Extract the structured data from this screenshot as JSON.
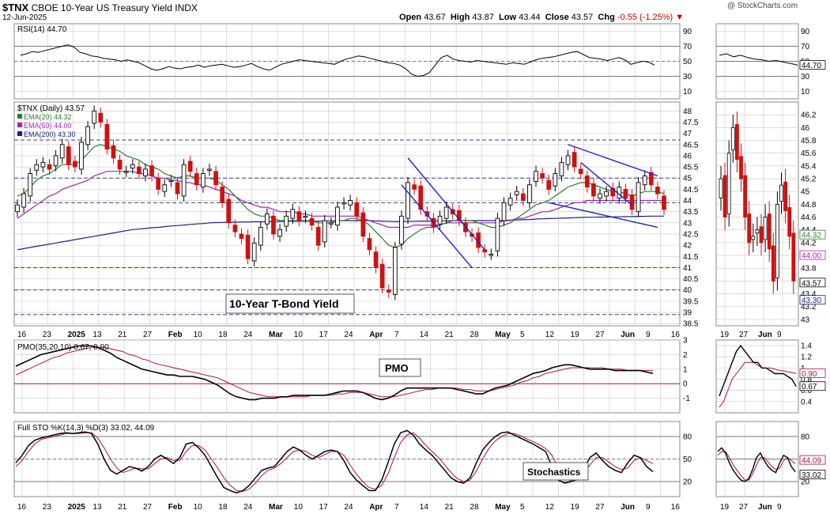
{
  "header": {
    "symbol": "$TNX",
    "name": "CBOE 10-Year US Treasury Yield",
    "exchange": "INDX",
    "date": "12-Jun-2025",
    "copyright": "@ StockCharts.com",
    "open_label": "Open",
    "open": "43.67",
    "high_label": "High",
    "high": "43.87",
    "low_label": "Low",
    "low": "43.44",
    "close_label": "Close",
    "close": "43.57",
    "chg_label": "Chg",
    "chg": "-0.55 (-1.25%)"
  },
  "colors": {
    "grid": "#c8c8c8",
    "hline": "#1a237e",
    "up": "#000000",
    "down": "#d01010",
    "ema20": "#2e7d32",
    "ema50": "#9c27b0",
    "ema200": "#1a237e",
    "channel": "#1e22c8",
    "pmo": "#000000",
    "pmo_signal": "#b01040",
    "sto_k": "#000000",
    "sto_d": "#b01040"
  },
  "chart_data": [
    {
      "type": "line",
      "panel": "rsi",
      "label": "RSI(14) 44.70",
      "yticks": [
        90,
        70,
        50,
        30,
        10
      ],
      "ylim": [
        0,
        100
      ],
      "hlines": [
        70,
        50,
        30
      ],
      "values": [
        58,
        60,
        63,
        62,
        64,
        66,
        68,
        70,
        72,
        69,
        62,
        60,
        57,
        56,
        54,
        53,
        52,
        50,
        52,
        50,
        48,
        44,
        40,
        38,
        40,
        43,
        41,
        40,
        42,
        43,
        45,
        42,
        44,
        45,
        46,
        44,
        42,
        43,
        45,
        47,
        43,
        40,
        38,
        42,
        46,
        48,
        50,
        52,
        51,
        50,
        49,
        48,
        47,
        46,
        50,
        53,
        55,
        57,
        56,
        54,
        52,
        50,
        48,
        47,
        45,
        40,
        33,
        30,
        31,
        35,
        45,
        55,
        58,
        53,
        51,
        50,
        49,
        51,
        50,
        49,
        48,
        47,
        46,
        48,
        47,
        46,
        49,
        52,
        54,
        55,
        56,
        58,
        60,
        62,
        63,
        59,
        55,
        54,
        53,
        51,
        53,
        55,
        52,
        46,
        48,
        50,
        49,
        45
      ],
      "zoom_values": [
        58,
        60,
        56,
        58,
        55,
        53,
        52,
        50,
        51,
        49,
        47,
        45
      ]
    },
    {
      "type": "candlestick",
      "panel": "price",
      "label": "$TNX (Daily) 43.57",
      "ylim": [
        38.4,
        48.4
      ],
      "yticks": [
        48.0,
        47.5,
        47.0,
        46.5,
        46.0,
        45.5,
        45.0,
        44.5,
        44.0,
        43.5,
        43.0,
        42.5,
        42.0,
        41.5,
        41.0,
        40.5,
        40.0,
        39.5,
        39.0,
        38.5
      ],
      "hlines": [
        46.7,
        45.0,
        43.9,
        41.0,
        40.0,
        38.9
      ],
      "annotation": "10-Year T-Bond Yield",
      "ema_legend": [
        {
          "name": "EMA(20) 44.32",
          "color": "#2e7d32"
        },
        {
          "name": "EMA(50) 44.00",
          "color": "#9c27b0"
        },
        {
          "name": "EMA(200) 43.30",
          "color": "#1a237e"
        }
      ],
      "closes": [
        43.8,
        44.3,
        45.2,
        45.6,
        45.7,
        45.4,
        46.0,
        46.5,
        45.6,
        45.5,
        46.6,
        47.3,
        48.0,
        47.5,
        46.3,
        45.9,
        45.4,
        45.3,
        45.6,
        45.2,
        45.4,
        45.1,
        44.5,
        44.7,
        44.9,
        44.3,
        45.6,
        45.3,
        44.7,
        45.2,
        45.4,
        44.7,
        43.9,
        43.0,
        42.6,
        42.3,
        41.4,
        42.1,
        42.8,
        43.4,
        42.5,
        42.7,
        43.3,
        43.6,
        43.1,
        43.3,
        42.9,
        42.0,
        43.1,
        43.0,
        43.7,
        43.9,
        44.0,
        43.3,
        42.4,
        41.8,
        41.0,
        40.1,
        39.9,
        41.9,
        43.3,
        44.8,
        44.5,
        43.6,
        43.3,
        42.8,
        43.3,
        43.7,
        43.4,
        43.1,
        42.6,
        42.4,
        41.9,
        41.7,
        41.6,
        43.2,
        43.9,
        44.1,
        44.4,
        44.0,
        44.7,
        45.3,
        45.0,
        44.5,
        45.2,
        45.7,
        46.0,
        45.5,
        45.2,
        44.6,
        44.2,
        44.3,
        44.4,
        44.2,
        44.6,
        44.1,
        43.6,
        44.8,
        45.1,
        44.7,
        44.3,
        43.6
      ],
      "ema20": [
        44.2,
        44.3,
        44.6,
        44.9,
        45.1,
        45.2,
        45.4,
        45.6,
        45.6,
        45.6,
        45.8,
        46.1,
        46.4,
        46.5,
        46.4,
        46.3,
        46.2,
        46.0,
        45.9,
        45.8,
        45.6,
        45.5,
        45.4,
        45.2,
        45.1,
        45.0,
        45.1,
        45.1,
        45.0,
        45.0,
        45.0,
        44.9,
        44.7,
        44.5,
        44.2,
        43.9,
        43.6,
        43.4,
        43.3,
        43.3,
        43.2,
        43.1,
        43.1,
        43.1,
        43.1,
        43.1,
        43.1,
        43.0,
        43.0,
        43.0,
        43.1,
        43.1,
        43.2,
        43.2,
        43.1,
        42.9,
        42.6,
        42.3,
        42.0,
        41.9,
        42.0,
        42.3,
        42.5,
        42.7,
        42.8,
        42.8,
        42.9,
        43.0,
        43.1,
        43.1,
        43.1,
        43.1,
        43.0,
        42.9,
        42.8,
        42.8,
        42.9,
        43.0,
        43.2,
        43.4,
        43.6,
        43.8,
        43.9,
        44.0,
        44.2,
        44.4,
        44.6,
        44.7,
        44.8,
        44.8,
        44.7,
        44.6,
        44.5,
        44.4,
        44.4,
        44.3,
        44.2,
        44.3,
        44.4,
        44.4,
        44.4,
        44.3
      ],
      "ema50": [
        43.2,
        43.4,
        43.6,
        43.8,
        44.0,
        44.2,
        44.3,
        44.5,
        44.6,
        44.7,
        44.8,
        44.9,
        45.1,
        45.2,
        45.3,
        45.3,
        45.3,
        45.3,
        45.3,
        45.2,
        45.2,
        45.1,
        45.0,
        45.0,
        44.9,
        44.9,
        44.8,
        44.8,
        44.7,
        44.7,
        44.6,
        44.5,
        44.4,
        44.3,
        44.2,
        44.0,
        43.9,
        43.8,
        43.7,
        43.7,
        43.6,
        43.5,
        43.5,
        43.5,
        43.4,
        43.4,
        43.3,
        43.3,
        43.3,
        43.3,
        43.3,
        43.3,
        43.3,
        43.3,
        43.2,
        43.1,
        43.0,
        42.9,
        42.8,
        42.8,
        42.8,
        42.8,
        42.9,
        42.9,
        42.9,
        42.9,
        42.9,
        43.0,
        43.0,
        43.0,
        43.0,
        43.0,
        43.0,
        43.0,
        43.0,
        43.0,
        43.1,
        43.1,
        43.2,
        43.2,
        43.3,
        43.4,
        43.5,
        43.5,
        43.6,
        43.7,
        43.8,
        43.9,
        43.9,
        44.0,
        44.0,
        44.0,
        44.0,
        44.0,
        44.0,
        44.0,
        44.0,
        44.0,
        44.0,
        44.0,
        44.0,
        44.0
      ],
      "ema200": [
        41.8,
        41.85,
        41.9,
        41.95,
        42.0,
        42.05,
        42.1,
        42.15,
        42.2,
        42.25,
        42.3,
        42.35,
        42.4,
        42.45,
        42.5,
        42.55,
        42.6,
        42.65,
        42.7,
        42.72,
        42.75,
        42.78,
        42.8,
        42.83,
        42.86,
        42.88,
        42.9,
        42.93,
        42.95,
        42.97,
        43.0,
        43.01,
        43.02,
        43.03,
        43.03,
        43.04,
        43.04,
        43.05,
        43.05,
        43.05,
        43.06,
        43.06,
        43.07,
        43.07,
        43.07,
        43.08,
        43.08,
        43.08,
        43.09,
        43.09,
        43.1,
        43.1,
        43.1,
        43.1,
        43.1,
        43.1,
        43.09,
        43.08,
        43.07,
        43.06,
        43.06,
        43.07,
        43.07,
        43.08,
        43.08,
        43.08,
        43.09,
        43.09,
        43.1,
        43.1,
        43.1,
        43.1,
        43.1,
        43.1,
        43.1,
        43.1,
        43.11,
        43.12,
        43.13,
        43.14,
        43.15,
        43.17,
        43.18,
        43.19,
        43.2,
        43.21,
        43.22,
        43.23,
        43.24,
        43.25,
        43.25,
        43.26,
        43.26,
        43.27,
        43.27,
        43.28,
        43.28,
        43.29,
        43.29,
        43.3,
        43.3,
        43.3
      ],
      "x_labels": [
        "16",
        "23",
        "2025",
        "13",
        "21",
        "27",
        "Feb",
        "10",
        "18",
        "24",
        "Mar",
        "10",
        "17",
        "24",
        "Apr",
        "7",
        "14",
        "21",
        "28",
        "May",
        "5",
        "12",
        "19",
        "27",
        "Jun",
        "9",
        "16"
      ],
      "zoom": {
        "ylim": [
          42.9,
          46.4
        ],
        "yticks": [
          46.2,
          46.0,
          45.8,
          45.6,
          45.4,
          45.2,
          45.0,
          44.8,
          44.6,
          44.4,
          44.2,
          44.0,
          43.8,
          43.6,
          43.4,
          43.2,
          43.0
        ],
        "x_labels": [
          "19",
          "27",
          "Jun",
          "9"
        ],
        "closes": [
          45.2,
          44.6,
          45.6,
          46.0,
          45.5,
          45.2,
          44.6,
          44.2,
          44.3,
          44.4,
          44.2,
          44.6,
          44.1,
          43.6,
          44.8,
          45.1,
          44.7,
          44.3,
          43.6
        ]
      }
    },
    {
      "type": "line",
      "panel": "pmo",
      "label": "PMO(35,20,10) 0.67, 0.90",
      "annotation": "PMO",
      "ylim": [
        -2,
        3
      ],
      "yticks": [
        3,
        2,
        1,
        0,
        -1
      ],
      "pmo": [
        1.2,
        1.4,
        1.6,
        1.8,
        2.0,
        2.1,
        2.2,
        2.3,
        2.4,
        2.5,
        2.6,
        2.6,
        2.6,
        2.5,
        2.3,
        2.1,
        1.8,
        1.6,
        1.4,
        1.2,
        1.0,
        0.9,
        0.8,
        0.7,
        0.6,
        0.6,
        0.5,
        0.5,
        0.5,
        0.4,
        0.3,
        0.1,
        -0.1,
        -0.4,
        -0.7,
        -0.9,
        -1.0,
        -1.1,
        -1.1,
        -1.0,
        -1.0,
        -1.0,
        -0.9,
        -0.9,
        -0.8,
        -0.8,
        -0.8,
        -0.8,
        -0.8,
        -0.8,
        -0.7,
        -0.6,
        -0.5,
        -0.5,
        -0.5,
        -0.6,
        -0.8,
        -1.0,
        -1.1,
        -1.0,
        -0.8,
        -0.5,
        -0.3,
        -0.3,
        -0.3,
        -0.3,
        -0.3,
        -0.3,
        -0.3,
        -0.3,
        -0.4,
        -0.5,
        -0.6,
        -0.7,
        -0.7,
        -0.5,
        -0.3,
        -0.2,
        -0.1,
        0.1,
        0.3,
        0.5,
        0.7,
        0.8,
        0.9,
        1.1,
        1.2,
        1.3,
        1.3,
        1.2,
        1.1,
        1.0,
        1.0,
        1.0,
        1.0,
        0.9,
        0.9,
        0.9,
        0.9,
        0.9,
        0.8,
        0.7
      ],
      "signal": [
        0.6,
        0.8,
        1.0,
        1.2,
        1.4,
        1.6,
        1.8,
        1.9,
        2.1,
        2.2,
        2.3,
        2.4,
        2.5,
        2.5,
        2.5,
        2.4,
        2.3,
        2.2,
        2.0,
        1.9,
        1.7,
        1.6,
        1.4,
        1.3,
        1.2,
        1.1,
        1.0,
        0.9,
        0.8,
        0.7,
        0.6,
        0.5,
        0.4,
        0.2,
        0.0,
        -0.2,
        -0.4,
        -0.6,
        -0.7,
        -0.8,
        -0.9,
        -0.9,
        -0.9,
        -0.9,
        -0.9,
        -0.9,
        -0.9,
        -0.8,
        -0.8,
        -0.8,
        -0.8,
        -0.7,
        -0.7,
        -0.6,
        -0.6,
        -0.6,
        -0.7,
        -0.8,
        -0.9,
        -0.9,
        -0.9,
        -0.8,
        -0.7,
        -0.6,
        -0.5,
        -0.4,
        -0.4,
        -0.3,
        -0.3,
        -0.3,
        -0.3,
        -0.4,
        -0.4,
        -0.5,
        -0.5,
        -0.5,
        -0.4,
        -0.3,
        -0.2,
        -0.1,
        0.1,
        0.2,
        0.4,
        0.5,
        0.7,
        0.8,
        0.9,
        1.0,
        1.1,
        1.1,
        1.1,
        1.1,
        1.1,
        1.1,
        1.0,
        1.0,
        1.0,
        0.9,
        0.9,
        0.9,
        0.9,
        0.9
      ],
      "zoom": {
        "ylim": [
          0.2,
          1.5
        ],
        "yticks": [
          1.4,
          1.2,
          1.0,
          0.8,
          0.6,
          0.4
        ],
        "pmo": [
          0.5,
          0.7,
          0.9,
          1.1,
          1.3,
          1.4,
          1.3,
          1.2,
          1.1,
          1.1,
          1.0,
          1.0,
          0.95,
          0.9,
          0.9,
          0.9,
          0.85,
          0.8,
          0.67
        ],
        "signal": [
          0.3,
          0.4,
          0.6,
          0.8,
          0.9,
          1.0,
          1.1,
          1.1,
          1.1,
          1.05,
          1.0,
          1.0,
          1.0,
          0.98,
          0.96,
          0.95,
          0.93,
          0.92,
          0.9
        ]
      }
    },
    {
      "type": "line",
      "panel": "stochastics",
      "label": "Full STO %K(14,3) %D(3) 33.02, 44.09",
      "annotation": "Stochastics",
      "ylim": [
        0,
        100
      ],
      "yticks": [
        80,
        50,
        20
      ],
      "hlines": [
        80,
        50,
        20
      ],
      "k": [
        45,
        55,
        68,
        75,
        78,
        80,
        82,
        84,
        85,
        84,
        85,
        86,
        84,
        70,
        50,
        35,
        30,
        35,
        40,
        38,
        34,
        40,
        50,
        55,
        50,
        44,
        52,
        70,
        72,
        65,
        55,
        40,
        25,
        12,
        8,
        5,
        8,
        15,
        25,
        35,
        38,
        40,
        50,
        60,
        66,
        62,
        55,
        50,
        55,
        60,
        62,
        60,
        48,
        32,
        22,
        15,
        8,
        8,
        22,
        45,
        70,
        85,
        88,
        82,
        70,
        62,
        55,
        45,
        35,
        25,
        20,
        18,
        25,
        45,
        62,
        72,
        80,
        85,
        86,
        82,
        78,
        74,
        70,
        65,
        60,
        40,
        22,
        18,
        20,
        24,
        36,
        52,
        58,
        48,
        40,
        35,
        32,
        45,
        55,
        52,
        40,
        33
      ],
      "d": [
        40,
        48,
        60,
        70,
        76,
        78,
        80,
        82,
        84,
        84,
        84,
        85,
        85,
        78,
        65,
        50,
        38,
        32,
        35,
        38,
        37,
        37,
        44,
        50,
        52,
        48,
        48,
        60,
        68,
        68,
        62,
        50,
        38,
        25,
        15,
        8,
        7,
        10,
        18,
        28,
        35,
        38,
        44,
        52,
        60,
        62,
        60,
        55,
        52,
        56,
        60,
        60,
        55,
        42,
        30,
        20,
        12,
        10,
        15,
        30,
        52,
        72,
        82,
        85,
        78,
        68,
        60,
        52,
        42,
        32,
        24,
        20,
        22,
        34,
        50,
        64,
        74,
        80,
        84,
        84,
        81,
        77,
        73,
        69,
        64,
        55,
        38,
        26,
        20,
        22,
        30,
        42,
        52,
        52,
        46,
        40,
        36,
        38,
        48,
        52,
        48,
        44
      ],
      "zoom": {
        "k": [
          60,
          65,
          58,
          45,
          35,
          28,
          22,
          20,
          24,
          36,
          52,
          58,
          48,
          40,
          35,
          32,
          45,
          55,
          52,
          40,
          33
        ],
        "d": [
          55,
          60,
          60,
          52,
          42,
          35,
          28,
          22,
          22,
          30,
          42,
          52,
          52,
          46,
          40,
          36,
          38,
          48,
          52,
          48,
          44
        ]
      }
    }
  ],
  "labels": {
    "rsi_last": "44.70",
    "ema20_last": "44.32",
    "ema50_last": "44.00",
    "close_last": "43.57",
    "ema200_last": "43.30",
    "pmo_signal_last": "0.90",
    "pmo_last": "0.67",
    "sto_d_last": "44.09",
    "sto_k_last": "33.02"
  }
}
